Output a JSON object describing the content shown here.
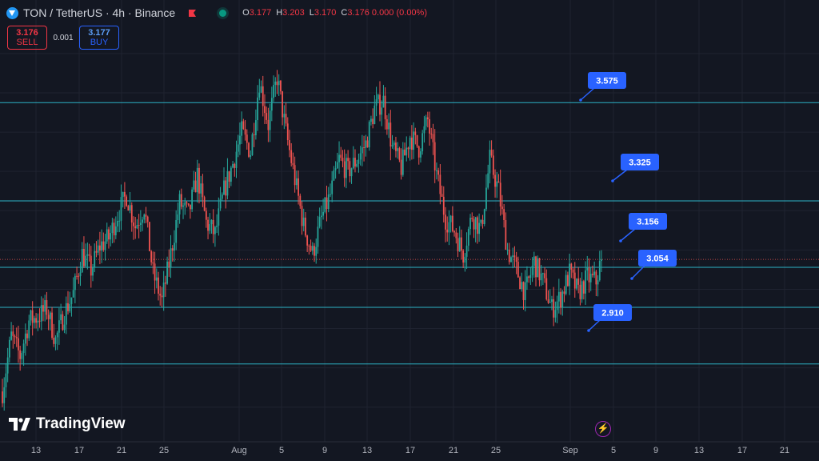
{
  "header": {
    "symbol": "TON / TetherUS · 4h · Binance",
    "ohlc": [
      {
        "k": "O",
        "v": "3.177"
      },
      {
        "k": "H",
        "v": "3.203"
      },
      {
        "k": "L",
        "v": "3.170"
      },
      {
        "k": "C",
        "v": "3.176 0.000 (0.00%)"
      }
    ]
  },
  "trade": {
    "sell_price": "3.176",
    "sell_label": "SELL",
    "spread": "0.001",
    "buy_price": "3.177",
    "buy_label": "BUY"
  },
  "brand": "TradingView",
  "colors": {
    "background": "#131722",
    "up": "#26a69a",
    "down": "#ef5350",
    "level_line": "#2db3c6",
    "callout": "#2962ff",
    "grid": "#1f2330",
    "axis_text": "#b2b5be"
  },
  "chart_data": {
    "type": "candlestick",
    "timeframe": "4h",
    "symbol": "TONUSDT",
    "x_tick_labels": [
      "13",
      "17",
      "21",
      "25",
      "Aug",
      "5",
      "9",
      "13",
      "17",
      "21",
      "25",
      "Sep",
      "5",
      "9",
      "13",
      "17",
      "21"
    ],
    "y_range": [
      2.72,
      3.82
    ],
    "horizontal_levels": [
      3.575,
      3.325,
      3.156,
      3.054,
      2.91
    ],
    "level_labels": [
      "3.575",
      "3.325",
      "3.156",
      "3.054",
      "2.910"
    ],
    "last_price": 3.176,
    "close_path": [
      [
        0,
        2.84
      ],
      [
        5,
        2.98
      ],
      [
        10,
        2.93
      ],
      [
        15,
        3.02
      ],
      [
        20,
        3.03
      ],
      [
        25,
        3.05
      ],
      [
        30,
        2.97
      ],
      [
        35,
        3.04
      ],
      [
        40,
        3.09
      ],
      [
        45,
        3.19
      ],
      [
        50,
        3.15
      ],
      [
        55,
        3.21
      ],
      [
        60,
        3.23
      ],
      [
        65,
        3.29
      ],
      [
        70,
        3.34
      ],
      [
        75,
        3.26
      ],
      [
        80,
        3.31
      ],
      [
        85,
        3.14
      ],
      [
        90,
        3.07
      ],
      [
        95,
        3.19
      ],
      [
        100,
        3.32
      ],
      [
        105,
        3.29
      ],
      [
        110,
        3.39
      ],
      [
        115,
        3.27
      ],
      [
        120,
        3.24
      ],
      [
        125,
        3.35
      ],
      [
        130,
        3.42
      ],
      [
        135,
        3.5
      ],
      [
        140,
        3.45
      ],
      [
        145,
        3.63
      ],
      [
        150,
        3.52
      ],
      [
        155,
        3.64
      ],
      [
        160,
        3.5
      ],
      [
        165,
        3.38
      ],
      [
        170,
        3.26
      ],
      [
        175,
        3.19
      ],
      [
        180,
        3.28
      ],
      [
        185,
        3.34
      ],
      [
        190,
        3.43
      ],
      [
        195,
        3.4
      ],
      [
        200,
        3.43
      ],
      [
        205,
        3.47
      ],
      [
        210,
        3.56
      ],
      [
        215,
        3.58
      ],
      [
        220,
        3.46
      ],
      [
        225,
        3.41
      ],
      [
        230,
        3.49
      ],
      [
        235,
        3.46
      ],
      [
        240,
        3.53
      ],
      [
        245,
        3.39
      ],
      [
        250,
        3.28
      ],
      [
        255,
        3.25
      ],
      [
        260,
        3.19
      ],
      [
        265,
        3.29
      ],
      [
        270,
        3.25
      ],
      [
        275,
        3.43
      ],
      [
        280,
        3.35
      ],
      [
        285,
        3.2
      ],
      [
        290,
        3.15
      ],
      [
        295,
        3.09
      ],
      [
        300,
        3.17
      ],
      [
        305,
        3.12
      ],
      [
        310,
        3.05
      ],
      [
        315,
        3.08
      ],
      [
        320,
        3.14
      ],
      [
        325,
        3.09
      ],
      [
        330,
        3.13
      ],
      [
        335,
        3.12
      ],
      [
        338,
        3.18
      ]
    ]
  }
}
